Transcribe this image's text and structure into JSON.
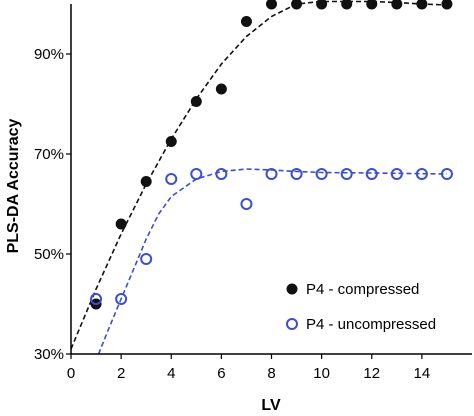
{
  "chart_data": {
    "type": "scatter",
    "title": "",
    "xlabel": "LV",
    "ylabel": "PLS-DA Accuracy",
    "xlim": [
      0,
      16
    ],
    "ylim": [
      30,
      100
    ],
    "x_ticks": [
      0,
      2,
      4,
      6,
      8,
      10,
      12,
      14
    ],
    "y_ticks": [
      30,
      50,
      70,
      90
    ],
    "x_tick_labels": [
      "0",
      "2",
      "4",
      "6",
      "8",
      "10",
      "12",
      "14"
    ],
    "y_tick_labels": [
      "30%",
      "50%",
      "70%",
      "90%"
    ],
    "grid": false,
    "legend_position": "bottom-right",
    "series": [
      {
        "name": "P4 - compressed",
        "marker": "filled-circle",
        "color": "#111111",
        "trendline": "dashed",
        "x": [
          1,
          2,
          3,
          4,
          5,
          6,
          7,
          8,
          9,
          10,
          11,
          12,
          13,
          14,
          15
        ],
        "y": [
          40,
          56,
          64.5,
          72.5,
          80.5,
          83,
          96.5,
          100,
          100,
          100,
          100,
          100,
          100,
          100,
          100
        ],
        "trend_x": [
          0,
          1,
          2,
          3,
          4,
          5,
          6,
          7,
          8,
          9,
          10,
          11,
          12,
          13,
          14,
          15
        ],
        "trend_y": [
          31,
          43,
          54,
          64,
          73,
          81,
          88,
          93.5,
          97.5,
          100,
          100.5,
          100.5,
          100.5,
          100.3,
          100,
          99.8
        ]
      },
      {
        "name": "P4 - uncompressed",
        "marker": "open-circle",
        "color": "#3a4fd6",
        "trendline": "dashed",
        "x": [
          1,
          2,
          3,
          4,
          5,
          6,
          7,
          8,
          9,
          10,
          11,
          12,
          13,
          14,
          15
        ],
        "y": [
          41,
          41,
          49,
          65,
          66,
          66,
          60,
          66,
          66,
          66,
          66,
          66,
          66,
          66,
          66
        ],
        "trend_x": [
          1.1,
          1.5,
          2,
          2.5,
          3,
          3.5,
          4,
          5,
          6,
          7,
          8,
          9,
          10,
          12,
          15
        ],
        "trend_y": [
          30,
          35,
          41,
          47,
          53,
          58,
          61.5,
          65,
          66.5,
          67,
          66.8,
          66.5,
          66.3,
          66.2,
          66
        ]
      }
    ]
  }
}
